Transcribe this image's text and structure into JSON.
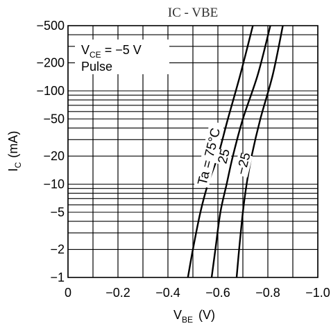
{
  "chart_data": {
    "type": "line",
    "title": "IC - VBE",
    "xlabel_main": "V",
    "xlabel_sub": "BE",
    "xlabel_unit": "(V)",
    "ylabel_main": "I",
    "ylabel_sub": "C",
    "ylabel_unit": "(mA)",
    "x_scale": "linear",
    "y_scale": "log",
    "xlim": [
      0,
      -1.0
    ],
    "ylim": [
      -1,
      -500
    ],
    "grid": true,
    "x_ticks": [
      {
        "value": 0,
        "label": "0"
      },
      {
        "value": -0.2,
        "label": "−0.2"
      },
      {
        "value": -0.4,
        "label": "−0.4"
      },
      {
        "value": -0.6,
        "label": "−0.6"
      },
      {
        "value": -0.8,
        "label": "−0.8"
      },
      {
        "value": -1.0,
        "label": "−1.0"
      }
    ],
    "y_ticks": [
      {
        "value": -1,
        "label": "−1"
      },
      {
        "value": -2,
        "label": "−2"
      },
      {
        "value": -5,
        "label": "−5"
      },
      {
        "value": -10,
        "label": "−10"
      },
      {
        "value": -20,
        "label": "−20"
      },
      {
        "value": -50,
        "label": "−50"
      },
      {
        "value": -100,
        "label": "−100"
      },
      {
        "value": -200,
        "label": "−200"
      },
      {
        "value": -500,
        "label": "−500"
      }
    ],
    "conditions": {
      "vce_main": "V",
      "vce_sub": "CE",
      "vce_value": " = −5 V",
      "pulse": "Pulse"
    },
    "series": [
      {
        "name": "Ta = 75°C",
        "x": [
          -0.48,
          -0.5,
          -0.53,
          -0.56,
          -0.6,
          -0.64,
          -0.69,
          -0.74
        ],
        "y": [
          -1,
          -2,
          -5,
          -10,
          -20,
          -50,
          -150,
          -500
        ]
      },
      {
        "name": "25",
        "x": [
          -0.575,
          -0.59,
          -0.61,
          -0.635,
          -0.66,
          -0.7,
          -0.76,
          -0.81
        ],
        "y": [
          -1,
          -2,
          -5,
          -10,
          -20,
          -50,
          -150,
          -500
        ]
      },
      {
        "name": "−25",
        "x": [
          -0.675,
          -0.685,
          -0.7,
          -0.715,
          -0.735,
          -0.77,
          -0.82,
          -0.86
        ],
        "y": [
          -1,
          -2,
          -5,
          -10,
          -20,
          -50,
          -150,
          -500
        ]
      }
    ]
  }
}
